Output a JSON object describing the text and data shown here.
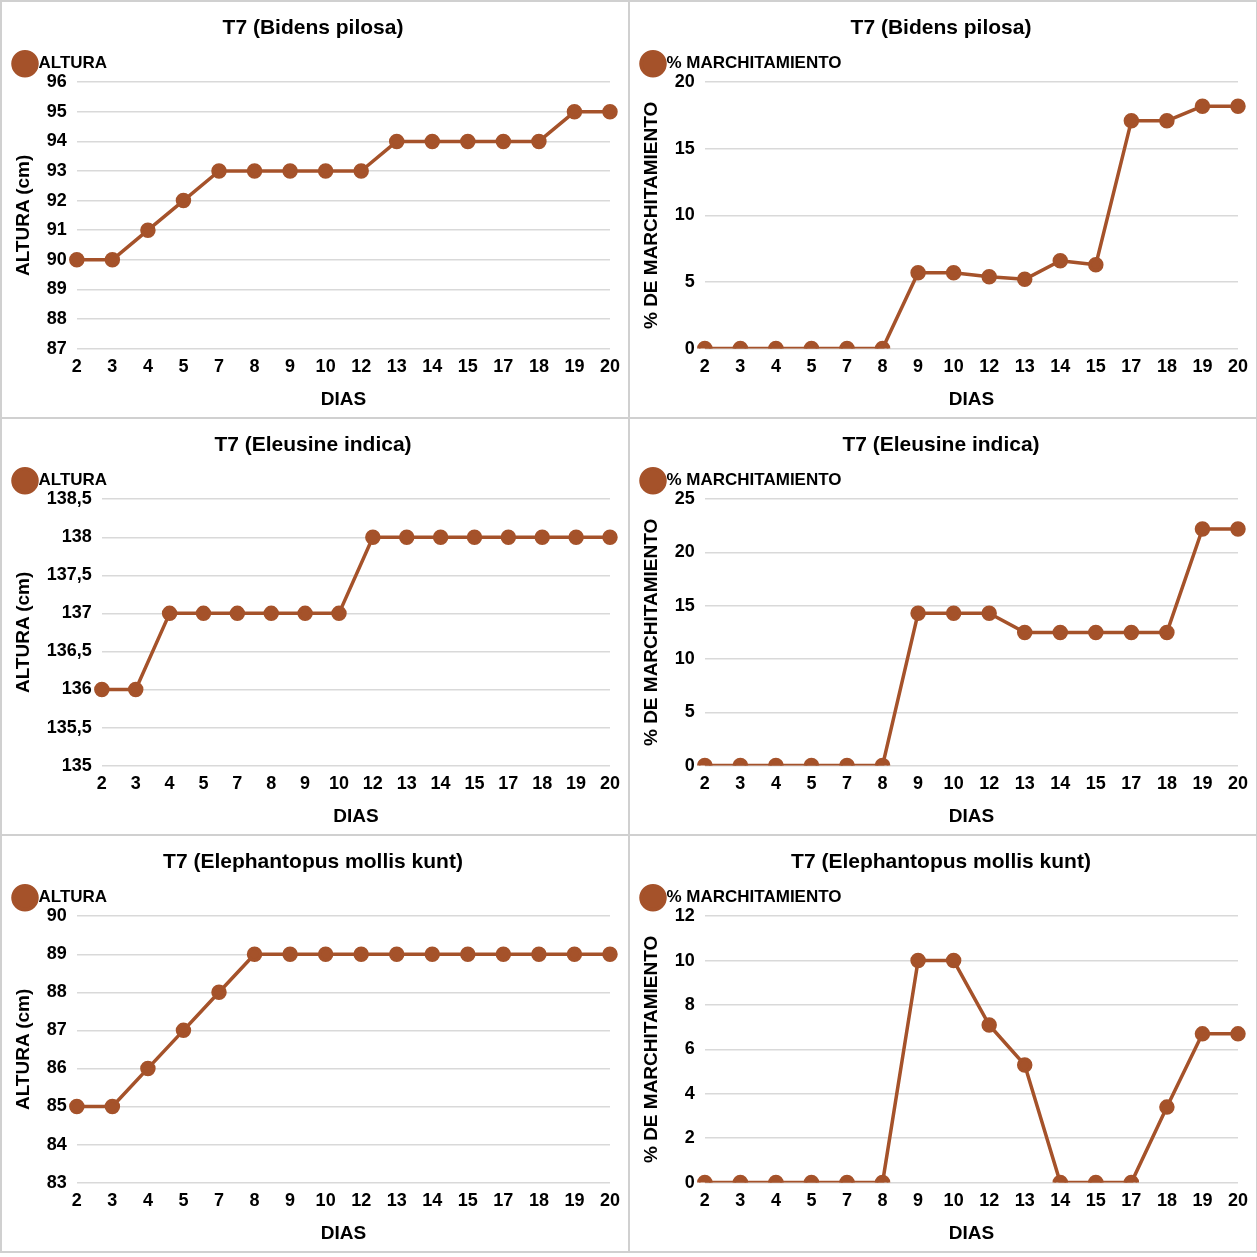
{
  "chart_data": [
    {
      "type": "line",
      "title": "T7 (Bidens pilosa)",
      "xlabel": "DIAS",
      "ylabel": "ALTURA (cm)",
      "categories": [
        "2",
        "3",
        "4",
        "5",
        "7",
        "8",
        "9",
        "10",
        "12",
        "13",
        "14",
        "15",
        "17",
        "18",
        "19",
        "20"
      ],
      "series": [
        {
          "name": "ALTURA",
          "color": "#a5522a",
          "values": [
            90,
            90,
            91,
            92,
            93,
            93,
            93,
            93,
            93,
            94,
            94,
            94,
            94,
            94,
            95,
            95
          ]
        }
      ],
      "ylim": [
        87,
        96
      ],
      "yticks": [
        87,
        88,
        89,
        90,
        91,
        92,
        93,
        94,
        95,
        96
      ],
      "grid": "y",
      "legend": "top left",
      "marker": "circle",
      "line_style": "solid"
    },
    {
      "type": "line",
      "title": "T7 (Bidens pilosa)",
      "xlabel": "DIAS",
      "ylabel": "% DE MARCHITAMIENTO",
      "categories": [
        "2",
        "3",
        "4",
        "5",
        "7",
        "8",
        "9",
        "10",
        "12",
        "13",
        "14",
        "15",
        "17",
        "18",
        "19",
        "20"
      ],
      "series": [
        {
          "name": "% MARCHITAMIENTO",
          "color": "#a5522a",
          "values": [
            0,
            0,
            0,
            0,
            0,
            0,
            5.7,
            5.7,
            5.4,
            5.2,
            6.6,
            6.3,
            17.1,
            17.1,
            18.2,
            18.2
          ]
        }
      ],
      "ylim": [
        0,
        20
      ],
      "yticks": [
        0,
        5,
        10,
        15,
        20
      ],
      "grid": "y",
      "legend": "top left",
      "marker": "circle",
      "line_style": "solid"
    },
    {
      "type": "line",
      "title": "T7 (Eleusine indica)",
      "xlabel": "DIAS",
      "ylabel": "ALTURA (cm)",
      "categories": [
        "2",
        "3",
        "4",
        "5",
        "7",
        "8",
        "9",
        "10",
        "12",
        "13",
        "14",
        "15",
        "17",
        "18",
        "19",
        "20"
      ],
      "series": [
        {
          "name": "ALTURA",
          "color": "#a5522a",
          "values": [
            136,
            136,
            137,
            137,
            137,
            137,
            137,
            137,
            138,
            138,
            138,
            138,
            138,
            138,
            138,
            138
          ]
        }
      ],
      "ylim": [
        135,
        138.5
      ],
      "yticks": [
        135,
        {
          "value": 135.5,
          "label": "135,5"
        },
        136,
        {
          "value": 136.5,
          "label": "136,5"
        },
        137,
        {
          "value": 137.5,
          "label": "137,5"
        },
        138,
        {
          "value": 138.5,
          "label": "138,5"
        }
      ],
      "grid": "y",
      "legend": "top left",
      "marker": "circle",
      "line_style": "solid"
    },
    {
      "type": "line",
      "title": "T7 (Eleusine indica)",
      "xlabel": "DIAS",
      "ylabel": "% DE MARCHITAMIENTO",
      "categories": [
        "2",
        "3",
        "4",
        "5",
        "7",
        "8",
        "9",
        "10",
        "12",
        "13",
        "14",
        "15",
        "17",
        "18",
        "19",
        "20"
      ],
      "series": [
        {
          "name": "% MARCHITAMIENTO",
          "color": "#a5522a",
          "values": [
            0,
            0,
            0,
            0,
            0,
            0,
            14.3,
            14.3,
            14.3,
            12.5,
            12.5,
            12.5,
            12.5,
            12.5,
            22.2,
            22.2
          ]
        }
      ],
      "ylim": [
        0,
        25
      ],
      "yticks": [
        0,
        5,
        10,
        15,
        20,
        25
      ],
      "grid": "y",
      "legend": "top left",
      "marker": "circle",
      "line_style": "solid"
    },
    {
      "type": "line",
      "title": "T7 (Elephantopus mollis kunt)",
      "xlabel": "DIAS",
      "ylabel": "ALTURA (cm)",
      "categories": [
        "2",
        "3",
        "4",
        "5",
        "7",
        "8",
        "9",
        "10",
        "12",
        "13",
        "14",
        "15",
        "17",
        "18",
        "19",
        "20"
      ],
      "series": [
        {
          "name": "ALTURA",
          "color": "#a5522a",
          "values": [
            85,
            85,
            86,
            87,
            88,
            89,
            89,
            89,
            89,
            89,
            89,
            89,
            89,
            89,
            89,
            89
          ]
        }
      ],
      "ylim": [
        83,
        90
      ],
      "yticks": [
        83,
        84,
        85,
        86,
        87,
        88,
        89,
        90
      ],
      "grid": "y",
      "legend": "top left",
      "marker": "circle",
      "line_style": "solid"
    },
    {
      "type": "line",
      "title": "T7 (Elephantopus mollis kunt)",
      "xlabel": "DIAS",
      "ylabel": "% DE MARCHITAMIENTO",
      "categories": [
        "2",
        "3",
        "4",
        "5",
        "7",
        "8",
        "9",
        "10",
        "12",
        "13",
        "14",
        "15",
        "17",
        "18",
        "19",
        "20"
      ],
      "series": [
        {
          "name": "% MARCHITAMIENTO",
          "color": "#a5522a",
          "values": [
            0,
            0,
            0,
            0,
            0,
            0,
            10,
            10,
            7.1,
            5.3,
            0,
            0,
            0,
            3.4,
            6.7,
            6.7
          ]
        }
      ],
      "ylim": [
        0,
        12
      ],
      "yticks": [
        0,
        2,
        4,
        6,
        8,
        10,
        12
      ],
      "grid": "y",
      "legend": "top left",
      "marker": "circle",
      "line_style": "solid"
    }
  ]
}
